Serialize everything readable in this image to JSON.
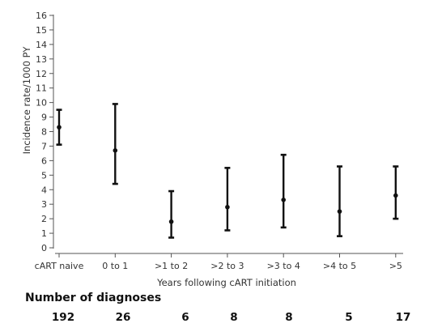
{
  "chart_data": {
    "type": "errorbar",
    "title": "",
    "ylabel": "Incidence rate/1000 PY",
    "xlabel": "Years following cART initiation",
    "ylim": [
      0,
      16
    ],
    "yticks": [
      0,
      1,
      2,
      3,
      4,
      5,
      6,
      7,
      8,
      9,
      10,
      11,
      12,
      13,
      14,
      15,
      16
    ],
    "grid": false,
    "categories": [
      "cART naive",
      "0 to 1",
      ">1 to 2",
      ">2 to 3",
      ">3 to 4",
      ">4 to 5",
      ">5"
    ],
    "series": [
      {
        "estimates": [
          8.3,
          6.7,
          1.8,
          2.8,
          3.3,
          2.5,
          3.6
        ],
        "lower": [
          7.1,
          4.4,
          0.7,
          1.2,
          1.4,
          0.8,
          2.0
        ],
        "upper": [
          9.5,
          9.9,
          3.9,
          5.5,
          6.4,
          5.6,
          5.6
        ]
      }
    ],
    "color": "#111111"
  },
  "diagnoses": {
    "title": "Number of diagnoses",
    "counts": [
      "192",
      "26",
      "6",
      "8",
      "8",
      "5",
      "17"
    ]
  }
}
